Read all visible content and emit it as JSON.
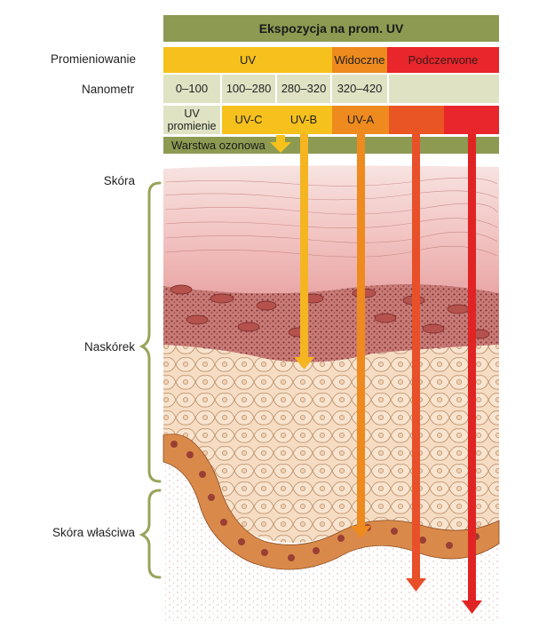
{
  "header": {
    "title": "Ekspozycja na prom. UV"
  },
  "row_labels": {
    "radiation": "Promieniowanie",
    "nanometer": "Nanometr"
  },
  "radiation_row": [
    {
      "label": "UV",
      "color": "#f6c11c"
    },
    {
      "label": "Widoczne",
      "color": "#ee8a1e"
    },
    {
      "label": "Podczerwone",
      "color": "#e8262b"
    }
  ],
  "nanometer_row": [
    "0–100",
    "100–280",
    "280–320",
    "320–420",
    ""
  ],
  "type_row": [
    {
      "label": "UV promienie",
      "color": "#dfe3c4"
    },
    {
      "label": "UV-C",
      "color": "#f6c11c"
    },
    {
      "label": "UV-B",
      "color": "#f6c11c"
    },
    {
      "label": "UV-A",
      "color": "#ee8a1e"
    },
    {
      "label": "",
      "color": "#ea5524"
    },
    {
      "label": "",
      "color": "#e8262b"
    }
  ],
  "ozone": {
    "label": "Warstwa ozonowa"
  },
  "skin_labels": {
    "skin": "Skóra",
    "epidermis": "Naskórek",
    "dermis": "Skóra właściwa"
  },
  "colors": {
    "header_olive": "#8c9a52",
    "pale_cell": "#dfe3c4",
    "uvc_arrow": "#f6c11c",
    "uvb_arrow": "#f5b520",
    "uva_arrow": "#ee8a1e",
    "visible_arrow": "#e8502a",
    "infrared_arrow": "#e02424",
    "bracket": "#9aa35a",
    "stratum_corneum": "#f0c4c4",
    "melanocyte_layer": "#c4696b",
    "cells": "#f6dcc3",
    "basal_cells": "#d98a4a"
  },
  "icons": [
    "ozone-arrow-icon",
    "uvb-arrow-icon",
    "uva-arrow-icon",
    "visible-arrow-icon",
    "infrared-arrow-icon",
    "bracket-icon"
  ]
}
